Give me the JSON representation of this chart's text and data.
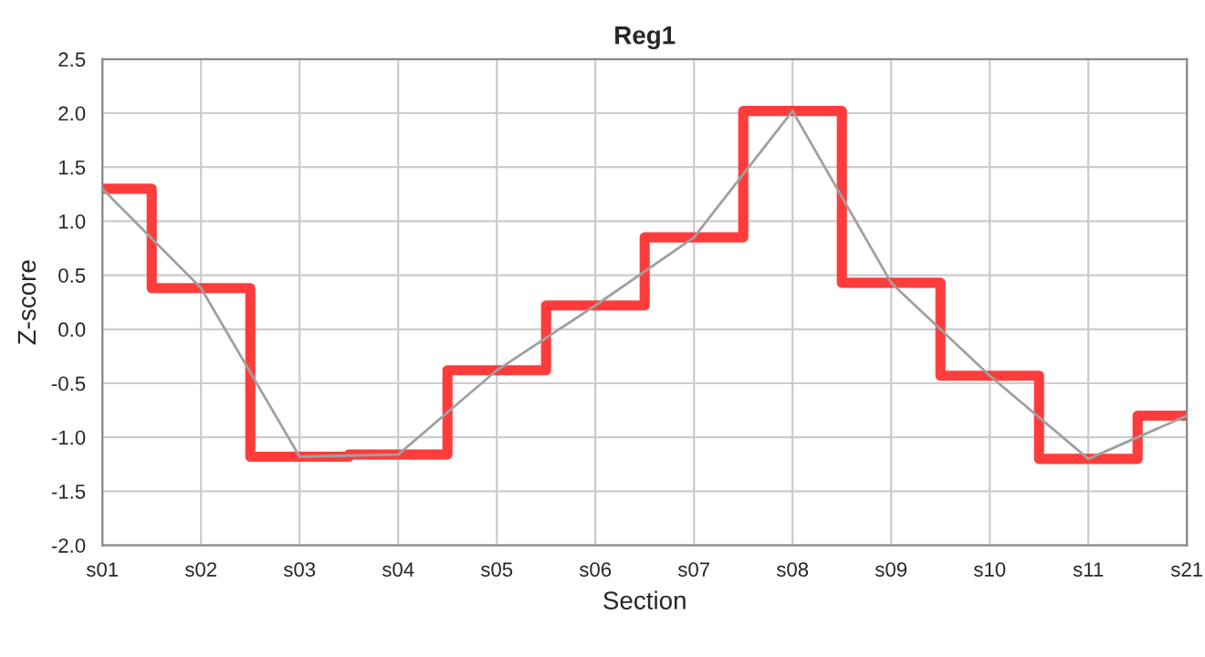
{
  "chart_data": {
    "type": "step",
    "title": "Reg1",
    "xlabel": "Section",
    "ylabel": "Z-score",
    "categories": [
      "s01",
      "s02",
      "s03",
      "s04",
      "s05",
      "s06",
      "s07",
      "s08",
      "s09",
      "s10",
      "s11",
      "s21"
    ],
    "series": [
      {
        "color": "#ff3c3c",
        "values": [
          1.3,
          0.38,
          -1.18,
          -1.16,
          -0.38,
          0.22,
          0.85,
          2.02,
          0.43,
          -0.43,
          -1.2,
          -0.8
        ]
      },
      {
        "type": "line",
        "color": "#a0a0a0",
        "values": [
          1.3,
          0.38,
          -1.18,
          -1.16,
          -0.38,
          0.22,
          0.85,
          2.02,
          0.43,
          -0.43,
          -1.2,
          -0.8
        ]
      }
    ],
    "ylim": [
      -2,
      2.5
    ],
    "yticks": [
      {
        "value": -2,
        "label": "-2.0"
      },
      {
        "value": -1.5,
        "label": "-1.5"
      },
      {
        "value": -1,
        "label": "-1.0"
      },
      {
        "value": -0.5,
        "label": "-0.5"
      },
      {
        "value": 0,
        "label": "0.0"
      },
      {
        "value": 0.5,
        "label": "0.5"
      },
      {
        "value": 1,
        "label": "1.0"
      },
      {
        "value": 1.5,
        "label": "1.5"
      },
      {
        "value": 2,
        "label": "2.0"
      },
      {
        "value": 2.5,
        "label": "2.5"
      }
    ],
    "grid": true
  }
}
